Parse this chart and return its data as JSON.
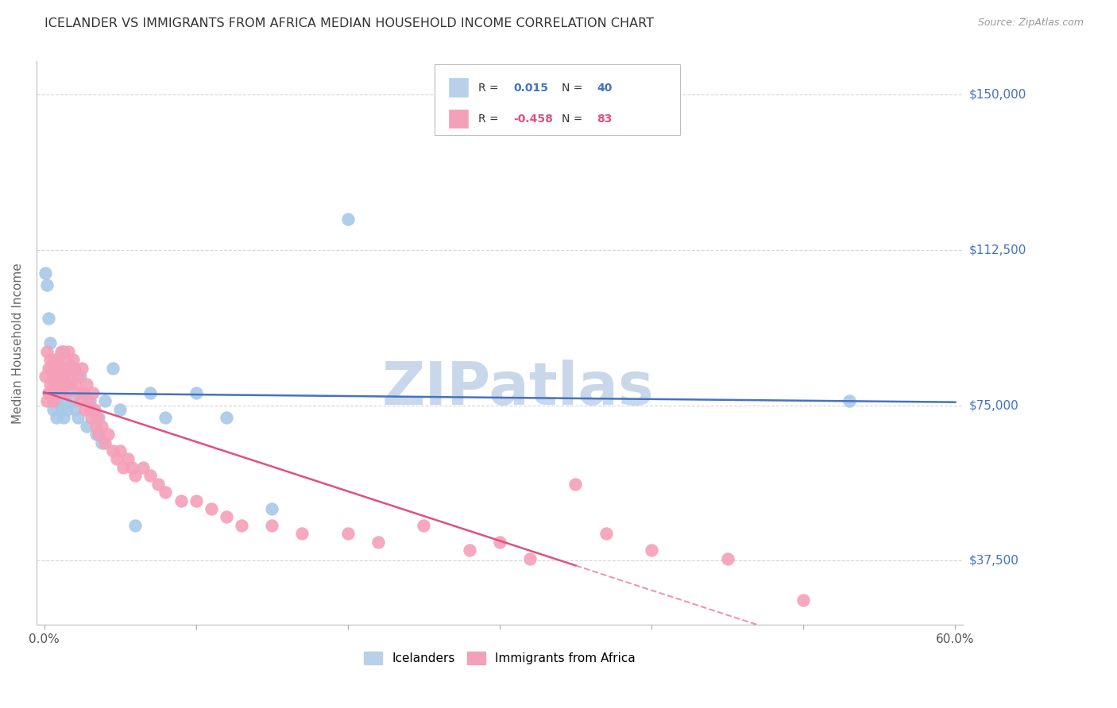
{
  "title": "ICELANDER VS IMMIGRANTS FROM AFRICA MEDIAN HOUSEHOLD INCOME CORRELATION CHART",
  "source": "Source: ZipAtlas.com",
  "ylabel": "Median Household Income",
  "xlim": [
    -0.005,
    0.605
  ],
  "ylim": [
    22000,
    158000
  ],
  "yticks": [
    37500,
    75000,
    112500,
    150000
  ],
  "ytick_labels": [
    "$37,500",
    "$75,000",
    "$112,500",
    "$150,000"
  ],
  "xticks": [
    0.0,
    0.1,
    0.2,
    0.3,
    0.4,
    0.5,
    0.6
  ],
  "xtick_labels": [
    "0.0%",
    "",
    "",
    "",
    "",
    "",
    "60.0%"
  ],
  "watermark": "ZIPatlas",
  "icelanders": {
    "color": "#a8c8e8",
    "line_color": "#4472c4",
    "R": 0.015,
    "N": 40,
    "x": [
      0.001,
      0.002,
      0.003,
      0.004,
      0.004,
      0.005,
      0.006,
      0.006,
      0.007,
      0.008,
      0.009,
      0.01,
      0.011,
      0.012,
      0.013,
      0.014,
      0.015,
      0.016,
      0.018,
      0.02,
      0.022,
      0.024,
      0.026,
      0.028,
      0.03,
      0.032,
      0.034,
      0.036,
      0.038,
      0.04,
      0.045,
      0.05,
      0.06,
      0.07,
      0.08,
      0.1,
      0.12,
      0.15,
      0.2,
      0.53
    ],
    "y": [
      107000,
      104000,
      96000,
      90000,
      78000,
      84000,
      82000,
      74000,
      80000,
      72000,
      76000,
      80000,
      74000,
      78000,
      72000,
      76000,
      74000,
      80000,
      76000,
      74000,
      72000,
      82000,
      78000,
      70000,
      76000,
      74000,
      68000,
      72000,
      66000,
      76000,
      84000,
      74000,
      46000,
      78000,
      72000,
      78000,
      72000,
      50000,
      120000,
      76000
    ]
  },
  "africa": {
    "color": "#f4a0b8",
    "line_color": "#e05080",
    "R": -0.458,
    "N": 83,
    "x": [
      0.001,
      0.002,
      0.002,
      0.003,
      0.003,
      0.004,
      0.004,
      0.005,
      0.005,
      0.006,
      0.006,
      0.007,
      0.007,
      0.008,
      0.008,
      0.009,
      0.009,
      0.01,
      0.01,
      0.011,
      0.011,
      0.012,
      0.012,
      0.013,
      0.013,
      0.014,
      0.014,
      0.015,
      0.015,
      0.016,
      0.016,
      0.017,
      0.018,
      0.019,
      0.02,
      0.021,
      0.022,
      0.023,
      0.024,
      0.025,
      0.026,
      0.027,
      0.028,
      0.029,
      0.03,
      0.031,
      0.032,
      0.033,
      0.034,
      0.035,
      0.036,
      0.038,
      0.04,
      0.042,
      0.045,
      0.048,
      0.05,
      0.052,
      0.055,
      0.058,
      0.06,
      0.065,
      0.07,
      0.075,
      0.08,
      0.09,
      0.1,
      0.11,
      0.12,
      0.13,
      0.15,
      0.17,
      0.2,
      0.22,
      0.25,
      0.28,
      0.3,
      0.32,
      0.35,
      0.37,
      0.4,
      0.45,
      0.5
    ],
    "y": [
      82000,
      88000,
      76000,
      84000,
      78000,
      86000,
      80000,
      84000,
      78000,
      82000,
      76000,
      86000,
      78000,
      84000,
      80000,
      86000,
      78000,
      84000,
      80000,
      88000,
      82000,
      84000,
      78000,
      82000,
      88000,
      84000,
      80000,
      86000,
      78000,
      82000,
      88000,
      80000,
      84000,
      86000,
      84000,
      80000,
      82000,
      78000,
      76000,
      84000,
      78000,
      74000,
      80000,
      76000,
      74000,
      72000,
      78000,
      74000,
      70000,
      72000,
      68000,
      70000,
      66000,
      68000,
      64000,
      62000,
      64000,
      60000,
      62000,
      60000,
      58000,
      60000,
      58000,
      56000,
      54000,
      52000,
      52000,
      50000,
      48000,
      46000,
      46000,
      44000,
      44000,
      42000,
      46000,
      40000,
      42000,
      38000,
      56000,
      44000,
      40000,
      38000,
      28000
    ]
  },
  "background_color": "#ffffff",
  "grid_color": "#cccccc",
  "title_color": "#333333",
  "watermark_color": "#c8d8ea",
  "axis_label_color": "#666666",
  "right_tick_color": "#4472c4"
}
